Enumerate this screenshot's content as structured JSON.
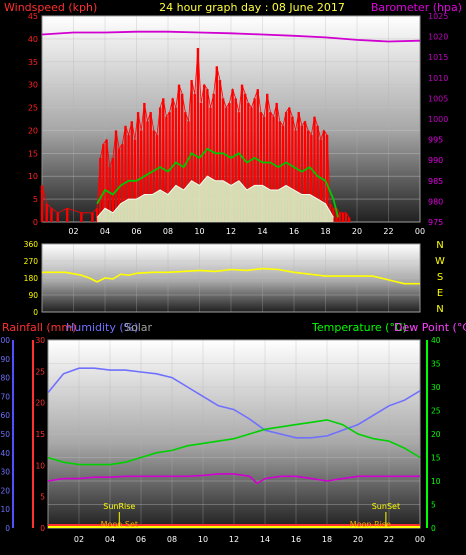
{
  "title": "24 hour graph day : 08 June 2017",
  "colors": {
    "wind_gust": "#ff0000",
    "wind_avg": "#00c800",
    "wind_low": "#d8ffd0",
    "barometer": "#d000d0",
    "wind_dir": "#ffff00",
    "rain": "#ff2020",
    "humidity": "#7070ff",
    "temperature": "#00d000",
    "dew": "#d000d0",
    "sun": "#ffff00",
    "moon": "#ffa500",
    "axis_green": "#00ff00"
  },
  "chart_data": [
    {
      "type": "bar",
      "id": "wind",
      "left_label": "Windspeed (kph)",
      "right_label": "Barometer (hpa)",
      "x_ticks": [
        "02",
        "04",
        "06",
        "08",
        "10",
        "12",
        "14",
        "16",
        "18",
        "20",
        "22",
        "00"
      ],
      "xlim": [
        0,
        24
      ],
      "left_ticks": [
        "0",
        "5",
        "10",
        "15",
        "20",
        "25",
        "30",
        "35",
        "40",
        "45"
      ],
      "left_lim": [
        0,
        45
      ],
      "right_ticks": [
        "975",
        "980",
        "985",
        "990",
        "995",
        "1000",
        "1005",
        "1010",
        "1015",
        "1020",
        "1025"
      ],
      "right_lim": [
        975,
        1025
      ],
      "series": [
        {
          "name": "gust",
          "type": "bar",
          "x": [
            0.0,
            0.3,
            0.6,
            1.0,
            1.6,
            2.5,
            3.2,
            3.5,
            3.7,
            3.9,
            4.1,
            4.3,
            4.5,
            4.7,
            4.9,
            5.1,
            5.3,
            5.5,
            5.7,
            5.9,
            6.1,
            6.3,
            6.5,
            6.7,
            6.9,
            7.1,
            7.3,
            7.5,
            7.7,
            7.9,
            8.1,
            8.3,
            8.5,
            8.7,
            8.9,
            9.1,
            9.3,
            9.5,
            9.7,
            9.9,
            10.1,
            10.3,
            10.5,
            10.7,
            10.9,
            11.1,
            11.3,
            11.5,
            11.7,
            11.9,
            12.1,
            12.3,
            12.5,
            12.7,
            12.9,
            13.1,
            13.3,
            13.5,
            13.7,
            13.9,
            14.1,
            14.3,
            14.5,
            14.7,
            14.9,
            15.1,
            15.3,
            15.5,
            15.7,
            15.9,
            16.1,
            16.3,
            16.5,
            16.7,
            16.9,
            17.1,
            17.3,
            17.5,
            17.7,
            17.9,
            18.1,
            18.3,
            18.5,
            18.7,
            18.9,
            19.1,
            19.3,
            19.5
          ],
          "values": [
            8,
            4,
            3,
            2,
            3,
            2,
            2,
            3,
            14,
            17,
            18,
            12,
            14,
            20,
            16,
            17,
            21,
            19,
            22,
            18,
            24,
            20,
            26,
            22,
            24,
            20,
            19,
            25,
            27,
            23,
            24,
            27,
            25,
            30,
            28,
            24,
            22,
            31,
            28,
            38,
            26,
            30,
            29,
            25,
            28,
            34,
            31,
            27,
            25,
            26,
            29,
            27,
            24,
            30,
            28,
            26,
            25,
            27,
            29,
            24,
            23,
            28,
            24,
            23,
            26,
            22,
            21,
            24,
            25,
            23,
            20,
            24,
            21,
            22,
            20,
            19,
            23,
            21,
            18,
            20,
            19,
            4,
            3,
            3,
            2,
            2,
            2,
            1
          ]
        },
        {
          "name": "average",
          "type": "line",
          "x": [
            3.5,
            4.0,
            4.5,
            5.0,
            5.5,
            6.0,
            6.5,
            7.0,
            7.5,
            8.0,
            8.5,
            9.0,
            9.5,
            10.0,
            10.5,
            11.0,
            11.5,
            12.0,
            12.5,
            13.0,
            13.5,
            14.0,
            14.5,
            15.0,
            15.5,
            16.0,
            16.5,
            17.0,
            17.5,
            18.0,
            18.5,
            18.8
          ],
          "values": [
            4,
            7,
            6,
            8,
            9,
            9,
            10,
            11,
            12,
            11,
            13,
            12,
            15,
            14,
            16,
            15,
            15,
            14,
            15,
            13,
            14,
            13,
            13,
            12,
            13,
            12,
            11,
            12,
            10,
            9,
            5,
            1
          ]
        },
        {
          "name": "lowest",
          "type": "line",
          "x": [
            3.5,
            4.0,
            4.5,
            5.0,
            5.5,
            6.0,
            6.5,
            7.0,
            7.5,
            8.0,
            8.5,
            9.0,
            9.5,
            10.0,
            10.5,
            11.0,
            11.5,
            12.0,
            12.5,
            13.0,
            13.5,
            14.0,
            14.5,
            15.0,
            15.5,
            16.0,
            16.5,
            17.0,
            17.5,
            18.0,
            18.5
          ],
          "values": [
            1,
            3,
            2,
            4,
            5,
            5,
            6,
            6,
            7,
            6,
            8,
            7,
            9,
            8,
            10,
            9,
            9,
            8,
            9,
            7,
            8,
            8,
            7,
            7,
            8,
            7,
            6,
            6,
            5,
            4,
            1
          ]
        },
        {
          "name": "barometer",
          "type": "line",
          "axis": "right",
          "x": [
            0,
            2,
            4,
            6,
            8,
            10,
            12,
            14,
            16,
            18,
            20,
            22,
            24
          ],
          "values": [
            1020.5,
            1021.0,
            1021.0,
            1021.2,
            1021.2,
            1021.0,
            1020.8,
            1020.5,
            1020.2,
            1019.8,
            1019.2,
            1018.8,
            1019.0
          ]
        }
      ]
    },
    {
      "type": "line",
      "id": "direction",
      "left_ticks": [
        "0",
        "90",
        "180",
        "270",
        "360"
      ],
      "left_lim": [
        0,
        360
      ],
      "compass": [
        "N",
        "W",
        "S",
        "E",
        "N"
      ],
      "series": [
        {
          "name": "direction",
          "x": [
            0,
            1.5,
            2.5,
            3.0,
            3.5,
            4.0,
            4.5,
            5.0,
            5.5,
            6,
            7,
            8,
            9,
            10,
            11,
            12,
            13,
            14,
            15,
            16,
            17,
            18,
            19,
            20,
            21,
            22,
            23,
            24
          ],
          "values": [
            210,
            210,
            195,
            180,
            160,
            180,
            175,
            200,
            195,
            205,
            210,
            210,
            215,
            220,
            215,
            225,
            220,
            230,
            225,
            210,
            200,
            190,
            190,
            190,
            190,
            170,
            150,
            150
          ]
        }
      ]
    },
    {
      "type": "line",
      "id": "climate",
      "left_labels": [
        "Rainfall (mm)",
        "Humidity (%)",
        "Solar"
      ],
      "right_labels": [
        "Temperature (°C)",
        "Dew Point (°C)"
      ],
      "x_ticks": [
        "02",
        "04",
        "06",
        "08",
        "10",
        "12",
        "14",
        "16",
        "18",
        "20",
        "22",
        "00"
      ],
      "humidity_ticks": [
        "0",
        "10",
        "20",
        "30",
        "40",
        "50",
        "60",
        "70",
        "80",
        "90",
        "100"
      ],
      "humidity_lim": [
        0,
        100
      ],
      "rain_ticks": [
        "0",
        "5",
        "10",
        "15",
        "20",
        "25",
        "30"
      ],
      "rain_lim": [
        0,
        30
      ],
      "temp_ticks": [
        "0",
        "5",
        "10",
        "15",
        "20",
        "25",
        "30",
        "35",
        "40"
      ],
      "temp_lim": [
        0,
        40
      ],
      "events": [
        {
          "label": "SunRise",
          "x": 4.6,
          "type": "sun"
        },
        {
          "label": "SunSet",
          "x": 21.8,
          "type": "sun"
        },
        {
          "label": "Moon Set",
          "x": 4.6,
          "type": "moon"
        },
        {
          "label": "Moon Rise",
          "x": 20.8,
          "type": "moon"
        }
      ],
      "series": [
        {
          "name": "humidity",
          "axis": "humidity",
          "x": [
            0,
            1,
            2,
            3,
            4,
            5,
            6,
            7,
            8,
            9,
            10,
            11,
            12,
            13,
            14,
            15,
            16,
            17,
            18,
            19,
            20,
            21,
            22,
            23,
            24
          ],
          "values": [
            72,
            82,
            85,
            85,
            84,
            84,
            83,
            82,
            80,
            75,
            70,
            65,
            63,
            58,
            52,
            50,
            48,
            48,
            49,
            52,
            55,
            60,
            65,
            68,
            73
          ]
        },
        {
          "name": "temperature",
          "axis": "temp",
          "x": [
            0,
            1,
            2,
            3,
            4,
            5,
            6,
            7,
            8,
            9,
            10,
            11,
            12,
            13,
            14,
            15,
            16,
            17,
            18,
            19,
            20,
            21,
            22,
            23,
            24
          ],
          "values": [
            15,
            14,
            13.5,
            13.5,
            13.5,
            14,
            15,
            16,
            16.5,
            17.5,
            18,
            18.5,
            19,
            20,
            21,
            21.5,
            22,
            22.5,
            23,
            22,
            20,
            19,
            18.5,
            17,
            15
          ]
        },
        {
          "name": "dew_point",
          "axis": "temp",
          "x": [
            0,
            1,
            2,
            3,
            4,
            5,
            6,
            7,
            8,
            9,
            10,
            11,
            12,
            13,
            13.5,
            14,
            15,
            16,
            17,
            18,
            19,
            20,
            21,
            22,
            23,
            24
          ],
          "values": [
            10,
            10.5,
            10.5,
            10.8,
            10.8,
            11,
            11,
            11,
            11,
            11,
            11.2,
            11.5,
            11.5,
            11,
            9.5,
            10.5,
            11,
            11,
            10.5,
            10,
            10.5,
            11,
            11,
            11,
            11,
            11
          ]
        }
      ]
    }
  ]
}
